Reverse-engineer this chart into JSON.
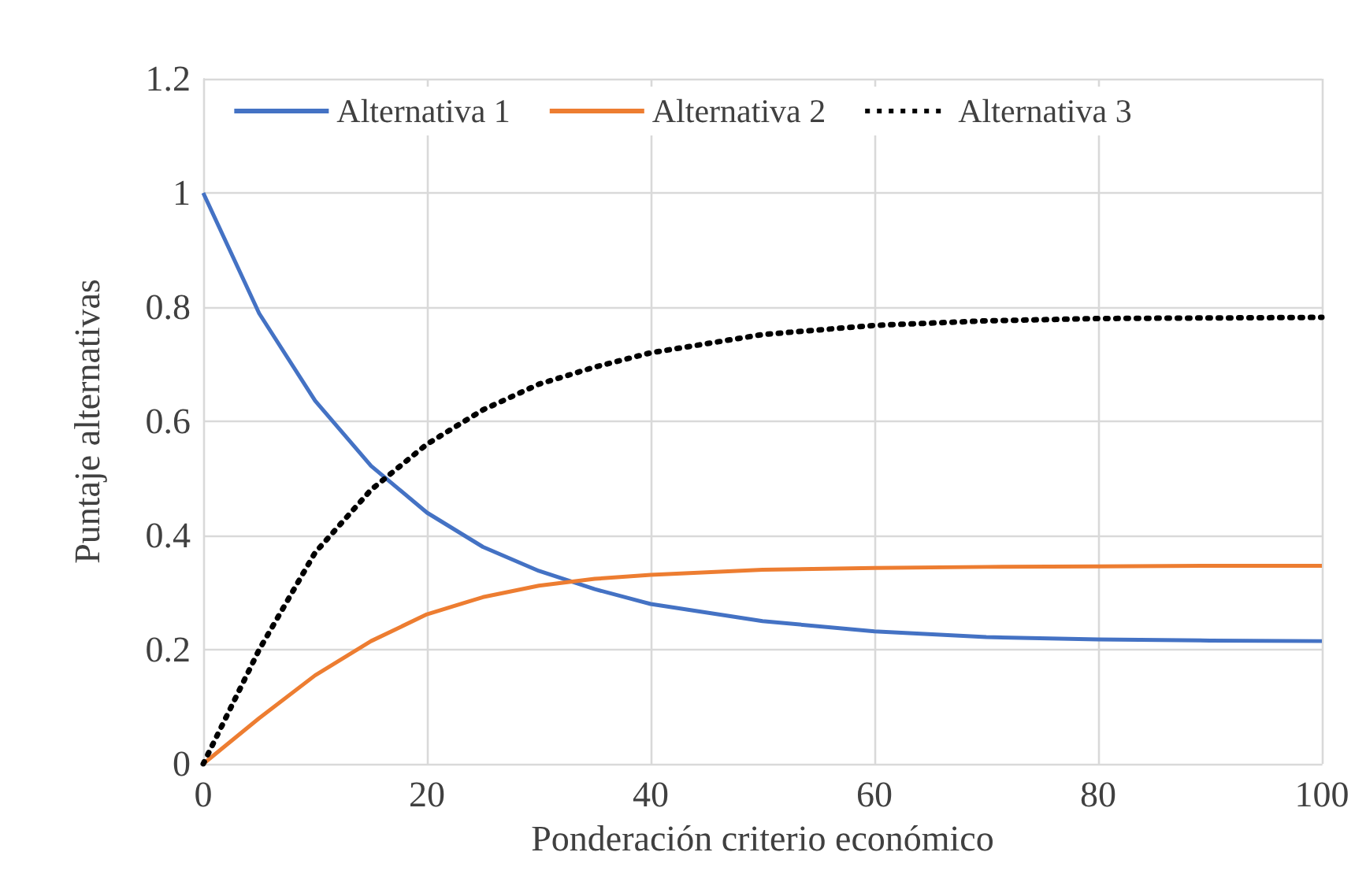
{
  "chart_data": {
    "type": "line",
    "xlabel": "Ponderación criterio económico",
    "ylabel": "Puntaje alternativas",
    "x": [
      0,
      5,
      10,
      15,
      20,
      25,
      30,
      35,
      40,
      50,
      60,
      70,
      80,
      90,
      100
    ],
    "series": [
      {
        "name": "Alternativa 1",
        "color": "#4472c4",
        "line_style": "solid",
        "values": [
          1,
          0.789,
          0.636,
          0.522,
          0.44,
          0.38,
          0.338,
          0.306,
          0.28,
          0.25,
          0.232,
          0.222,
          0.218,
          0.216,
          0.215
        ]
      },
      {
        "name": "Alternativa 2",
        "color": "#ed7d31",
        "line_style": "solid",
        "values": [
          0,
          0.08,
          0.155,
          0.215,
          0.262,
          0.292,
          0.312,
          0.324,
          0.331,
          0.34,
          0.343,
          0.345,
          0.346,
          0.347,
          0.347
        ]
      },
      {
        "name": "Alternativa 3",
        "color": "#000000",
        "line_style": "dotted",
        "values": [
          0,
          0.2,
          0.37,
          0.48,
          0.56,
          0.62,
          0.665,
          0.695,
          0.72,
          0.752,
          0.768,
          0.776,
          0.78,
          0.781,
          0.782
        ]
      }
    ],
    "xlim": [
      0,
      100
    ],
    "xticks": [
      0,
      20,
      40,
      60,
      80,
      100
    ],
    "ylim": [
      0,
      1.2
    ],
    "yticks": [
      0,
      0.2,
      0.4,
      0.6,
      0.8,
      1,
      1.2
    ],
    "grid": true,
    "legend": "top",
    "marker": "none"
  }
}
